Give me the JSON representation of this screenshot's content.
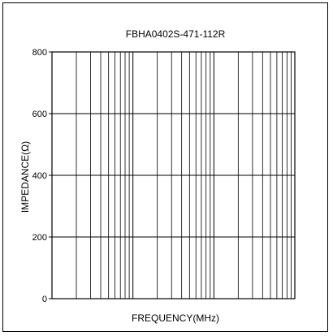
{
  "chart_data": {
    "type": "line",
    "title": "FBHA0402S-471-112R",
    "xlabel": "FREQUENCY(MHz)",
    "ylabel": "IMPEDANCE(Ω)",
    "ylim": [
      0,
      800
    ],
    "yticks": [
      0,
      200,
      400,
      600,
      800
    ],
    "xscale": "log",
    "xdecades": 3,
    "grid": true,
    "series": []
  },
  "colors": {
    "axis": "#000000",
    "grid": "#000000",
    "background": "#ffffff"
  }
}
